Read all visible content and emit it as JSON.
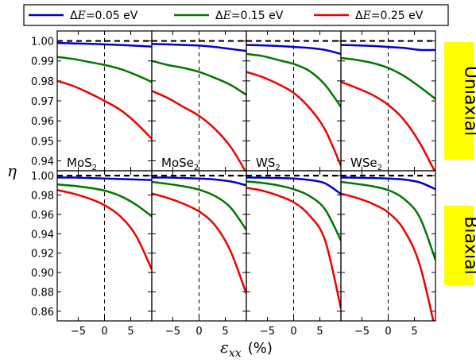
{
  "chart_data": {
    "type": "line",
    "ylabel": "η",
    "xlabel": "ε",
    "xlabel_sub": "xx",
    "xlabel_unit": "(%)",
    "xlim": [
      -9,
      9
    ],
    "xticks": [
      -5,
      0,
      5
    ],
    "xtick_labels": [
      "−5",
      "0",
      "5"
    ],
    "columns": [
      {
        "base": "MoS",
        "sub": "2"
      },
      {
        "base": "MoSe",
        "sub": "2"
      },
      {
        "base": "WS",
        "sub": "2"
      },
      {
        "base": "WSe",
        "sub": "2"
      }
    ],
    "legend": [
      {
        "prefix": "Δ",
        "symbol": "E",
        "text": "=0.05 eV",
        "color": "#0000cc"
      },
      {
        "prefix": "Δ",
        "symbol": "E",
        "text": "=0.15 eV",
        "color": "#007700"
      },
      {
        "prefix": "Δ",
        "symbol": "E",
        "text": "=0.25 eV",
        "color": "#ee0000"
      }
    ],
    "rows": [
      {
        "label": "Uniaxial",
        "ylim": [
          0.935,
          1.005
        ],
        "yticks": [
          0.94,
          0.95,
          0.96,
          0.97,
          0.98,
          0.99,
          1.0
        ],
        "ytick_labels": [
          "0.94",
          "0.95",
          "0.96",
          "0.97",
          "0.98",
          "0.99",
          "1.00"
        ],
        "panels": [
          {
            "series": [
              {
                "x": [
                  -9,
                  -6,
                  -3,
                  0,
                  3,
                  6,
                  9
                ],
                "y": [
                  0.999,
                  0.9988,
                  0.9986,
                  0.9983,
                  0.998,
                  0.9976,
                  0.9972
                ]
              },
              {
                "x": [
                  -9,
                  -6,
                  -3,
                  0,
                  3,
                  6,
                  9
                ],
                "y": [
                  0.992,
                  0.991,
                  0.9895,
                  0.988,
                  0.986,
                  0.983,
                  0.9795
                ]
              },
              {
                "x": [
                  -9,
                  -6,
                  -3,
                  0,
                  3,
                  6,
                  9
                ],
                "y": [
                  0.98,
                  0.9775,
                  0.974,
                  0.97,
                  0.9655,
                  0.959,
                  0.951
                ]
              }
            ]
          },
          {
            "series": [
              {
                "x": [
                  -9,
                  -6,
                  -3,
                  0,
                  3,
                  6,
                  9
                ],
                "y": [
                  0.9985,
                  0.9983,
                  0.998,
                  0.9977,
                  0.997,
                  0.996,
                  0.995
                ]
              },
              {
                "x": [
                  -9,
                  -6,
                  -3,
                  0,
                  3,
                  6,
                  9
                ],
                "y": [
                  0.99,
                  0.988,
                  0.9865,
                  0.9845,
                  0.9815,
                  0.978,
                  0.973
                ]
              },
              {
                "x": [
                  -9,
                  -6,
                  -3,
                  0,
                  3,
                  6,
                  9
                ],
                "y": [
                  0.975,
                  0.9715,
                  0.967,
                  0.9625,
                  0.956,
                  0.947,
                  0.934
                ]
              }
            ]
          },
          {
            "series": [
              {
                "x": [
                  -9,
                  -6,
                  -3,
                  0,
                  3,
                  6,
                  9
                ],
                "y": [
                  0.998,
                  0.9978,
                  0.9975,
                  0.997,
                  0.9965,
                  0.9955,
                  0.9935
                ]
              },
              {
                "x": [
                  -9,
                  -6,
                  -3,
                  0,
                  3,
                  6,
                  9
                ],
                "y": [
                  0.9935,
                  0.9925,
                  0.9905,
                  0.9885,
                  0.985,
                  0.978,
                  0.967
                ]
              },
              {
                "x": [
                  -9,
                  -6,
                  -3,
                  0,
                  3,
                  6,
                  9
                ],
                "y": [
                  0.9845,
                  0.982,
                  0.9785,
                  0.974,
                  0.9665,
                  0.9555,
                  0.9375
                ]
              }
            ]
          },
          {
            "series": [
              {
                "x": [
                  -9,
                  -6,
                  -3,
                  0,
                  3,
                  6,
                  9
                ],
                "y": [
                  0.998,
                  0.9978,
                  0.9975,
                  0.997,
                  0.9965,
                  0.9955,
                  0.9955
                ]
              },
              {
                "x": [
                  -9,
                  -6,
                  -3,
                  0,
                  3,
                  6,
                  9
                ],
                "y": [
                  0.9915,
                  0.9905,
                  0.989,
                  0.9865,
                  0.9825,
                  0.977,
                  0.971
                ]
              },
              {
                "x": [
                  -9,
                  -6,
                  -3,
                  0,
                  3,
                  6,
                  9
                ],
                "y": [
                  0.9795,
                  0.9765,
                  0.973,
                  0.968,
                  0.9605,
                  0.949,
                  0.934
                ]
              }
            ]
          }
        ]
      },
      {
        "label": "Biaxial",
        "ylim": [
          0.85,
          1.005
        ],
        "yticks": [
          0.86,
          0.88,
          0.9,
          0.92,
          0.94,
          0.96,
          0.98,
          1.0
        ],
        "ytick_labels": [
          "0.86",
          "0.88",
          "0.90",
          "0.92",
          "0.94",
          "0.96",
          "0.98",
          "1.00"
        ],
        "panels": [
          {
            "series": [
              {
                "x": [
                  -9,
                  -6,
                  -3,
                  0,
                  3,
                  6,
                  9
                ],
                "y": [
                  0.998,
                  0.998,
                  0.9975,
                  0.997,
                  0.9965,
                  0.996,
                  0.9955
                ]
              },
              {
                "x": [
                  -9,
                  -6,
                  -3,
                  0,
                  3,
                  6,
                  9
                ],
                "y": [
                  0.991,
                  0.9895,
                  0.9875,
                  0.9845,
                  0.979,
                  0.97,
                  0.958
                ]
              },
              {
                "x": [
                  -9,
                  -6,
                  -3,
                  0,
                  3,
                  6,
                  9
                ],
                "y": [
                  0.985,
                  0.9815,
                  0.9765,
                  0.9695,
                  0.958,
                  0.938,
                  0.903
                ]
              }
            ]
          },
          {
            "series": [
              {
                "x": [
                  -9,
                  -6,
                  -3,
                  0,
                  3,
                  6,
                  9
                ],
                "y": [
                  0.998,
                  0.998,
                  0.9975,
                  0.997,
                  0.996,
                  0.994,
                  0.99
                ]
              },
              {
                "x": [
                  -9,
                  -6,
                  -3,
                  0,
                  3,
                  6,
                  9
                ],
                "y": [
                  0.9935,
                  0.9915,
                  0.989,
                  0.9855,
                  0.979,
                  0.967,
                  0.944
                ]
              },
              {
                "x": [
                  -9,
                  -6,
                  -3,
                  0,
                  3,
                  6,
                  9
                ],
                "y": [
                  0.9815,
                  0.977,
                  0.971,
                  0.963,
                  0.949,
                  0.922,
                  0.878
                ]
              }
            ]
          },
          {
            "series": [
              {
                "x": [
                  -9,
                  -6,
                  -3,
                  0,
                  3,
                  6,
                  9
                ],
                "y": [
                  0.998,
                  0.9978,
                  0.9975,
                  0.997,
                  0.9955,
                  0.992,
                  0.981
                ]
              },
              {
                "x": [
                  -9,
                  -6,
                  -3,
                  0,
                  3,
                  6,
                  9
                ],
                "y": [
                  0.994,
                  0.9925,
                  0.99,
                  0.986,
                  0.979,
                  0.965,
                  0.933
                ]
              },
              {
                "x": [
                  -9,
                  -6,
                  -3,
                  0,
                  3,
                  6,
                  9
                ],
                "y": [
                  0.9875,
                  0.9845,
                  0.9795,
                  0.9725,
                  0.959,
                  0.933,
                  0.863
                ]
              }
            ]
          },
          {
            "series": [
              {
                "x": [
                  -9,
                  -6,
                  -3,
                  0,
                  3,
                  6,
                  9
                ],
                "y": [
                  0.998,
                  0.9978,
                  0.9975,
                  0.997,
                  0.996,
                  0.993,
                  0.986
                ]
              },
              {
                "x": [
                  -9,
                  -6,
                  -3,
                  0,
                  3,
                  6,
                  9
                ],
                "y": [
                  0.9935,
                  0.9915,
                  0.989,
                  0.985,
                  0.976,
                  0.957,
                  0.913
                ]
              },
              {
                "x": [
                  -9,
                  -6,
                  -3,
                  0,
                  3,
                  6,
                  9
                ],
                "y": [
                  0.9815,
                  0.977,
                  0.971,
                  0.962,
                  0.944,
                  0.908,
                  0.84
                ]
              }
            ]
          }
        ]
      }
    ],
    "reference_line": {
      "y": 1.0,
      "style": "dashed",
      "color": "#000000"
    },
    "zero_line": {
      "x": 0,
      "style": "dashed",
      "color": "#000000"
    },
    "side_label_bg": "#ffff00"
  }
}
